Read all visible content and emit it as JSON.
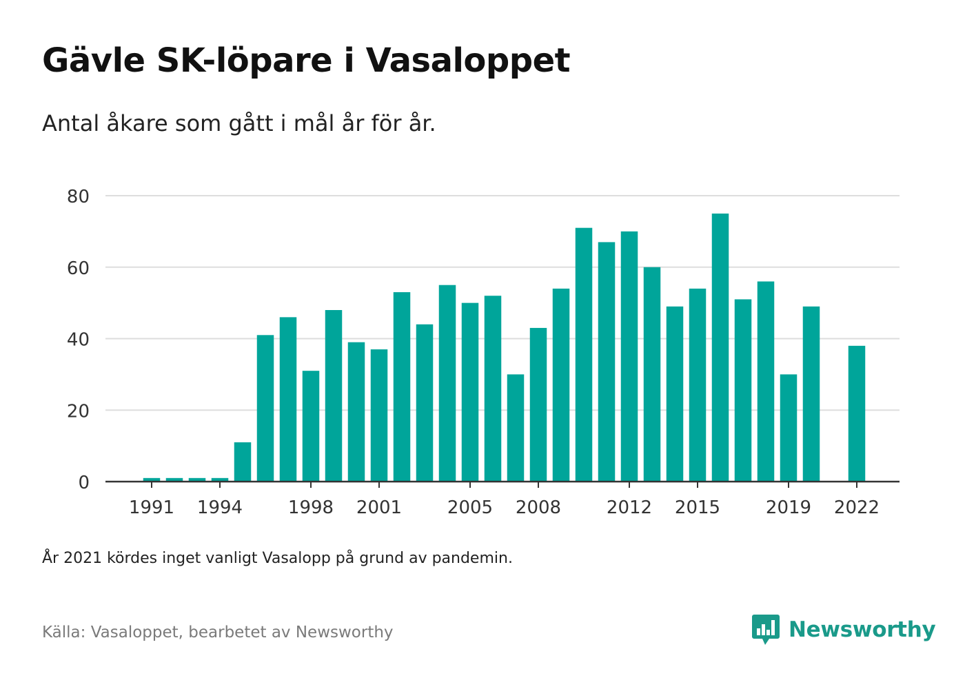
{
  "header": {
    "title": "Gävle SK-löpare i Vasaloppet",
    "subtitle": "Antal åkare som gått i mål år för år."
  },
  "footer": {
    "note": "År 2021 kördes inget vanligt Vasalopp på grund av pandemin.",
    "source": "Källa: Vasaloppet, bearbetet av Newsworthy",
    "brand": "Newsworthy",
    "brand_icon": "newsworthy-logo-icon"
  },
  "colors": {
    "bar": "#00a59a",
    "grid": "#dddddd",
    "axis": "#333333",
    "tick_text": "#333333",
    "brand": "#1a9a8a"
  },
  "chart_data": {
    "type": "bar",
    "categories": [
      1990,
      1991,
      1992,
      1993,
      1994,
      1995,
      1996,
      1997,
      1998,
      1999,
      2000,
      2001,
      2002,
      2003,
      2004,
      2005,
      2006,
      2007,
      2008,
      2009,
      2010,
      2011,
      2012,
      2013,
      2014,
      2015,
      2016,
      2017,
      2018,
      2019,
      2020,
      2021,
      2022
    ],
    "values": [
      null,
      1,
      1,
      1,
      1,
      11,
      41,
      46,
      31,
      48,
      39,
      37,
      53,
      44,
      55,
      50,
      52,
      30,
      43,
      54,
      71,
      67,
      70,
      60,
      49,
      54,
      75,
      51,
      56,
      30,
      49,
      null,
      38
    ],
    "x_tick_labels": [
      "1991",
      "1994",
      "1998",
      "2001",
      "2005",
      "2008",
      "2012",
      "2015",
      "2019",
      "2022"
    ],
    "y_ticks": [
      0,
      20,
      40,
      60,
      80
    ],
    "ylim": [
      0,
      80
    ],
    "grid": true,
    "legend": "none"
  }
}
